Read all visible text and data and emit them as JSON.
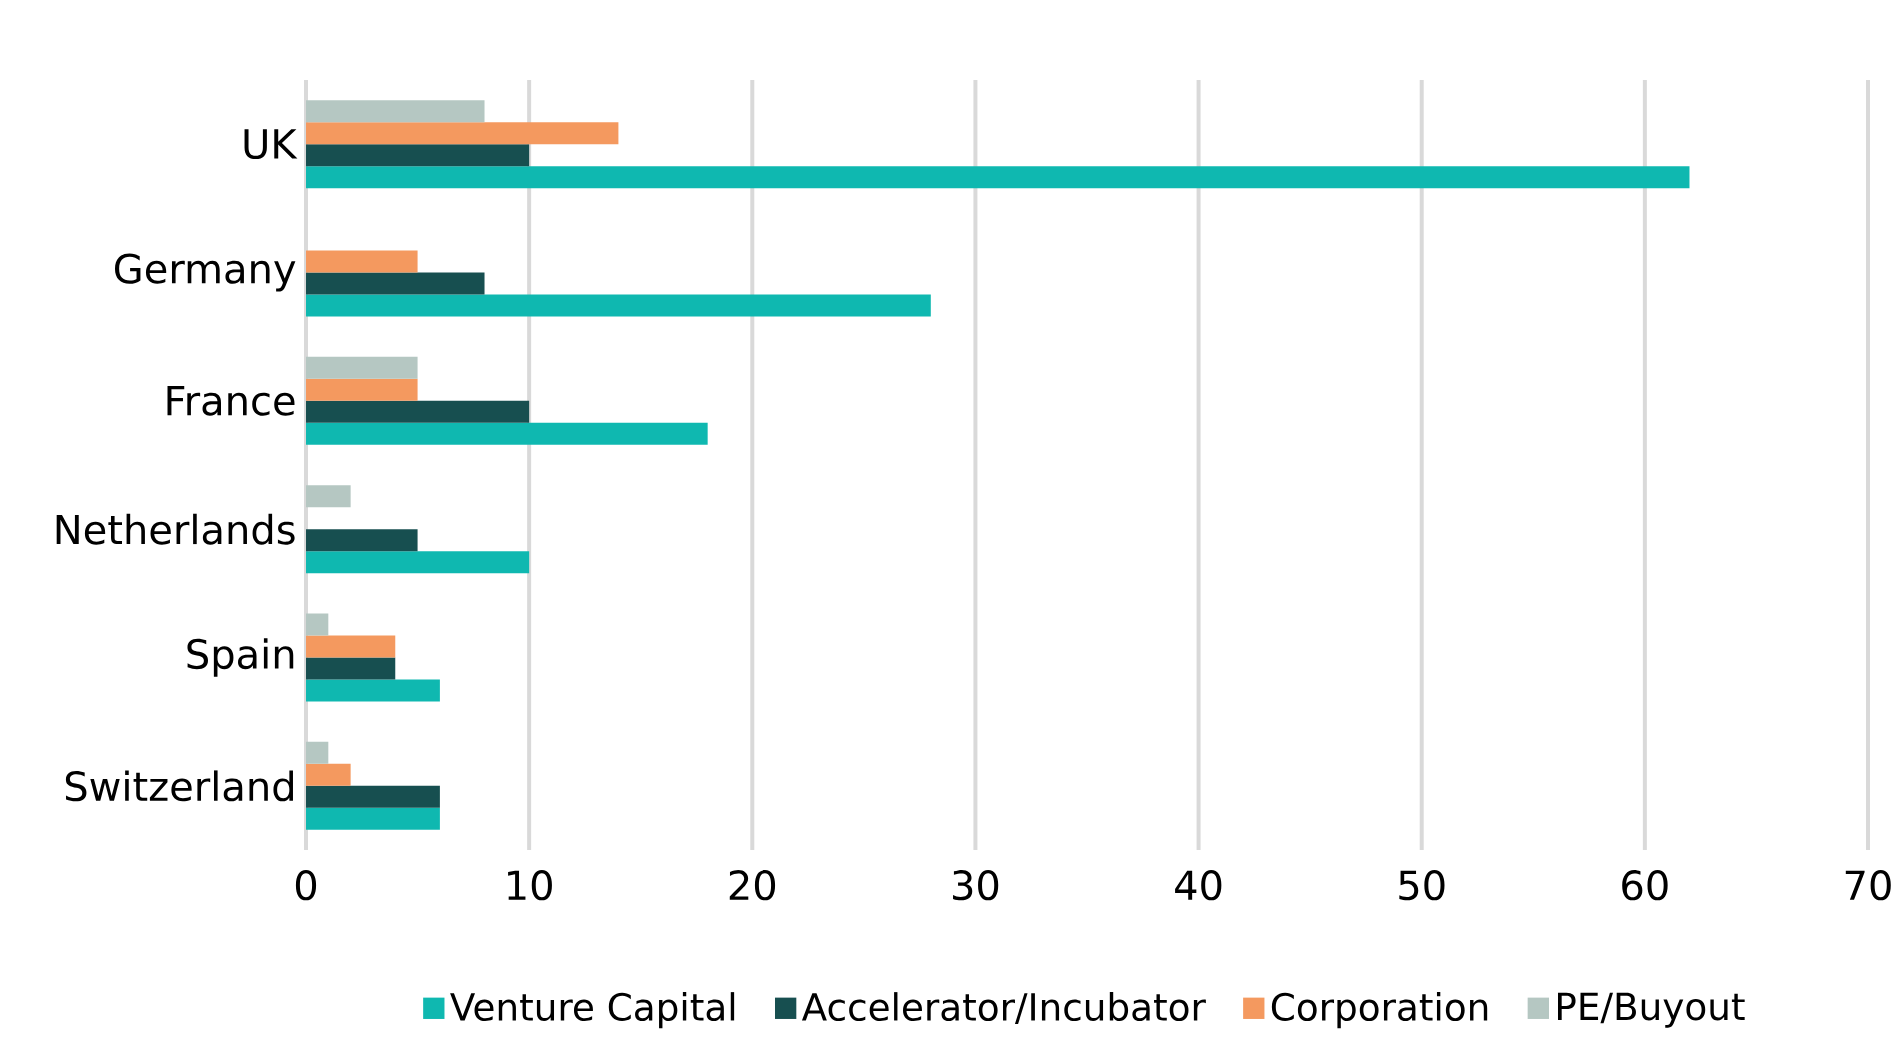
{
  "chart_data": {
    "type": "bar",
    "orientation": "horizontal",
    "categories": [
      "UK",
      "Germany",
      "France",
      "Netherlands",
      "Spain",
      "Switzerland"
    ],
    "series": [
      {
        "name": "Venture Capital",
        "color": "#0fb8b0",
        "values": [
          62,
          28,
          18,
          10,
          6,
          6
        ]
      },
      {
        "name": "Accelerator/Incubator",
        "color": "#174f50",
        "values": [
          10,
          8,
          10,
          5,
          4,
          6
        ]
      },
      {
        "name": "Corporation",
        "color": "#f4995f",
        "values": [
          14,
          5,
          5,
          null,
          4,
          2
        ]
      },
      {
        "name": "PE/Buyout",
        "color": "#b5c7c2",
        "values": [
          8,
          null,
          5,
          2,
          1,
          1
        ]
      }
    ],
    "xlim": [
      0,
      70
    ],
    "xticks": [
      0,
      10,
      20,
      30,
      40,
      50,
      60,
      70
    ],
    "grid": "x",
    "legend": "bottom"
  }
}
